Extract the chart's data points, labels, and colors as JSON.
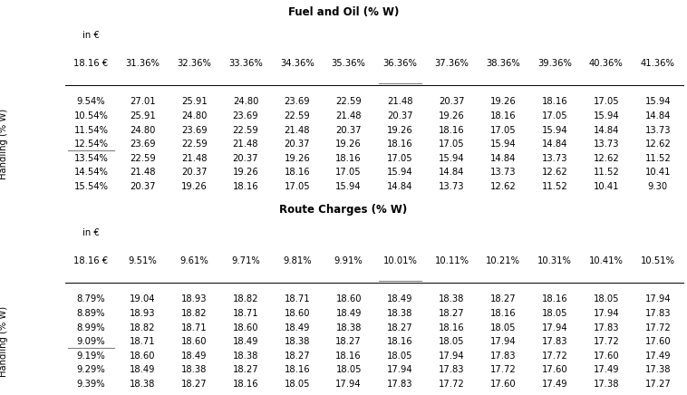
{
  "table1": {
    "title": "Fuel and Oil (% W)",
    "corner_label": "in €",
    "corner_sub": "18.16 €",
    "col_headers": [
      "31.36%",
      "32.36%",
      "33.36%",
      "34.36%",
      "35.36%",
      "36.36%",
      "37.36%",
      "38.36%",
      "39.36%",
      "40.36%",
      "41.36%"
    ],
    "col_underline_idx": 5,
    "row_headers": [
      "9.54%",
      "10.54%",
      "11.54%",
      "12.54%",
      "13.54%",
      "14.54%",
      "15.54%"
    ],
    "row_underline_idx": 3,
    "row_label": "Handling (% W)",
    "data": [
      [
        27.01,
        25.91,
        24.8,
        23.69,
        22.59,
        21.48,
        20.37,
        19.26,
        18.16,
        17.05,
        15.94
      ],
      [
        25.91,
        24.8,
        23.69,
        22.59,
        21.48,
        20.37,
        19.26,
        18.16,
        17.05,
        15.94,
        14.84
      ],
      [
        24.8,
        23.69,
        22.59,
        21.48,
        20.37,
        19.26,
        18.16,
        17.05,
        15.94,
        14.84,
        13.73
      ],
      [
        23.69,
        22.59,
        21.48,
        20.37,
        19.26,
        18.16,
        17.05,
        15.94,
        14.84,
        13.73,
        12.62
      ],
      [
        22.59,
        21.48,
        20.37,
        19.26,
        18.16,
        17.05,
        15.94,
        14.84,
        13.73,
        12.62,
        11.52
      ],
      [
        21.48,
        20.37,
        19.26,
        18.16,
        17.05,
        15.94,
        14.84,
        13.73,
        12.62,
        11.52,
        10.41
      ],
      [
        20.37,
        19.26,
        18.16,
        17.05,
        15.94,
        14.84,
        13.73,
        12.62,
        11.52,
        10.41,
        9.3
      ]
    ]
  },
  "table2": {
    "title": "Route Charges (% W)",
    "corner_label": "in €",
    "corner_sub": "18.16 €",
    "col_headers": [
      "9.51%",
      "9.61%",
      "9.71%",
      "9.81%",
      "9.91%",
      "10.01%",
      "10.11%",
      "10.21%",
      "10.31%",
      "10.41%",
      "10.51%"
    ],
    "col_underline_idx": 5,
    "row_headers": [
      "8.79%",
      "8.89%",
      "8.99%",
      "9.09%",
      "9.19%",
      "9.29%",
      "9.39%"
    ],
    "row_underline_idx": 3,
    "row_label": "Handling (% W)",
    "data": [
      [
        19.04,
        18.93,
        18.82,
        18.71,
        18.6,
        18.49,
        18.38,
        18.27,
        18.16,
        18.05,
        17.94
      ],
      [
        18.93,
        18.82,
        18.71,
        18.6,
        18.49,
        18.38,
        18.27,
        18.16,
        18.05,
        17.94,
        17.83
      ],
      [
        18.82,
        18.71,
        18.6,
        18.49,
        18.38,
        18.27,
        18.16,
        18.05,
        17.94,
        17.83,
        17.72
      ],
      [
        18.71,
        18.6,
        18.49,
        18.38,
        18.27,
        18.16,
        18.05,
        17.94,
        17.83,
        17.72,
        17.6
      ],
      [
        18.6,
        18.49,
        18.38,
        18.27,
        18.16,
        18.05,
        17.94,
        17.83,
        17.72,
        17.6,
        17.49
      ],
      [
        18.49,
        18.38,
        18.27,
        18.16,
        18.05,
        17.94,
        17.83,
        17.72,
        17.6,
        17.49,
        17.38
      ],
      [
        18.38,
        18.27,
        18.16,
        18.05,
        17.94,
        17.83,
        17.72,
        17.6,
        17.49,
        17.38,
        17.27
      ]
    ]
  },
  "bg_color": "#ffffff",
  "text_color": "#000000",
  "font_size": 7.2,
  "title_font_size": 8.5,
  "header_font_size": 7.2
}
